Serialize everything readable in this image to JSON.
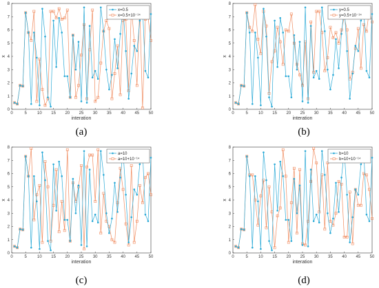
{
  "chart_data": [
    {
      "type": "line",
      "panel_label": "(a)",
      "xlabel": "interation",
      "ylabel": "x",
      "xlim": [
        0,
        50
      ],
      "ylim": [
        0,
        8
      ],
      "xticks": [
        0,
        5,
        10,
        15,
        20,
        25,
        30,
        35,
        40,
        45,
        50
      ],
      "yticks": [
        0,
        1,
        2,
        3,
        4,
        5,
        6,
        7,
        8
      ],
      "grid": false,
      "legend_position": "top-right",
      "x": [
        1,
        2,
        3,
        4,
        5,
        6,
        7,
        8,
        9,
        10,
        11,
        12,
        13,
        14,
        15,
        16,
        17,
        18,
        19,
        20,
        21,
        22,
        23,
        24,
        25,
        26,
        27,
        28,
        29,
        30,
        31,
        32,
        33,
        34,
        35,
        36,
        37,
        38,
        39,
        40,
        41,
        42,
        43,
        44,
        45,
        46,
        47,
        48,
        49,
        50
      ],
      "series": [
        {
          "name": "x=0.5",
          "color": "#29a9d6",
          "marker": "dot",
          "values": [
            0.5,
            0.4,
            1.8,
            1.75,
            7.3,
            5.8,
            0.4,
            5.8,
            3.9,
            0.3,
            7.6,
            5.5,
            0.9,
            0.2,
            6.7,
            3.2,
            6.9,
            5.8,
            2.5,
            2.5,
            0.9,
            5.6,
            3.0,
            5.1,
            0.6,
            7.7,
            0.5,
            6.3,
            2.4,
            2.9,
            2.3,
            7.7,
            5.9,
            3.0,
            1.5,
            2.6,
            5.3,
            3.1,
            5.7,
            7.7,
            4.4,
            0.8,
            2.7,
            4.8,
            4.4,
            6.7,
            7.7,
            2.9,
            2.4,
            7.2
          ]
        },
        {
          "name": "x=0.5+10⁻¹⁴",
          "color": "#f08a5d",
          "marker": "square",
          "values": [
            0.5,
            0.4,
            1.8,
            1.75,
            7.3,
            5.8,
            5.2,
            7.4,
            0.6,
            3.8,
            1.5,
            0.3,
            0.8,
            7.4,
            7.4,
            6.9,
            7.6,
            6.8,
            6.9,
            7.5,
            0.9,
            5.6,
            0.9,
            1.8,
            4.1,
            6.4,
            0.8,
            4.5,
            7.5,
            0.6,
            0.9,
            3.5,
            5.9,
            6.7,
            6.1,
            0.8,
            2.7,
            4.8,
            1.1,
            6.7,
            6.8,
            1.4,
            7.7,
            5.2,
            1.8,
            7.7,
            0.1,
            6.8,
            6.9,
            5.2
          ]
        }
      ]
    },
    {
      "type": "line",
      "panel_label": "(b)",
      "xlabel": "interation",
      "ylabel": "x",
      "xlim": [
        0,
        50
      ],
      "ylim": [
        0,
        8
      ],
      "xticks": [
        0,
        5,
        10,
        15,
        20,
        25,
        30,
        35,
        40,
        45,
        50
      ],
      "yticks": [
        0,
        1,
        2,
        3,
        4,
        5,
        6,
        7,
        8
      ],
      "grid": false,
      "legend_position": "top-right",
      "x": [
        1,
        2,
        3,
        4,
        5,
        6,
        7,
        8,
        9,
        10,
        11,
        12,
        13,
        14,
        15,
        16,
        17,
        18,
        19,
        20,
        21,
        22,
        23,
        24,
        25,
        26,
        27,
        28,
        29,
        30,
        31,
        32,
        33,
        34,
        35,
        36,
        37,
        38,
        39,
        40,
        41,
        42,
        43,
        44,
        45,
        46,
        47,
        48,
        49,
        50
      ],
      "series": [
        {
          "name": "y=0.5",
          "color": "#29a9d6",
          "marker": "dot",
          "values": [
            0.5,
            0.4,
            1.8,
            1.75,
            7.3,
            5.8,
            0.4,
            5.8,
            3.9,
            0.3,
            7.6,
            5.5,
            0.9,
            0.2,
            6.7,
            3.2,
            6.9,
            5.8,
            2.5,
            2.5,
            0.9,
            5.6,
            3.0,
            5.1,
            0.6,
            7.7,
            0.5,
            6.3,
            2.4,
            2.9,
            2.3,
            7.7,
            5.9,
            3.0,
            1.5,
            2.6,
            5.3,
            3.1,
            5.7,
            7.7,
            4.4,
            0.8,
            2.7,
            4.8,
            4.4,
            6.7,
            7.7,
            2.9,
            2.4,
            7.2
          ]
        },
        {
          "name": "y=0.5+10⁻¹⁴",
          "color": "#f08a5d",
          "marker": "square",
          "values": [
            0.5,
            0.4,
            1.8,
            1.75,
            7.3,
            6.2,
            5.9,
            7.9,
            5.3,
            4.2,
            7.4,
            6.3,
            1.2,
            3.6,
            4.4,
            6.2,
            5.1,
            3.4,
            6.0,
            5.9,
            7.2,
            5.0,
            3.4,
            2.6,
            1.8,
            5.1,
            0.8,
            6.6,
            2.8,
            7.4,
            7.4,
            5.8,
            2.9,
            3.9,
            6.2,
            5.4,
            5.8,
            5.0,
            6.0,
            7.0,
            6.0,
            2.3,
            2.8,
            4.6,
            6.1,
            3.1,
            6.4,
            5.9,
            7.5,
            6.6
          ]
        }
      ]
    },
    {
      "type": "line",
      "panel_label": "(c)",
      "xlabel": "interation",
      "ylabel": "x",
      "xlim": [
        0,
        50
      ],
      "ylim": [
        0,
        8
      ],
      "xticks": [
        0,
        5,
        10,
        15,
        20,
        25,
        30,
        35,
        40,
        45,
        50
      ],
      "yticks": [
        0,
        1,
        2,
        3,
        4,
        5,
        6,
        7,
        8
      ],
      "grid": false,
      "legend_position": "top-right",
      "x": [
        1,
        2,
        3,
        4,
        5,
        6,
        7,
        8,
        9,
        10,
        11,
        12,
        13,
        14,
        15,
        16,
        17,
        18,
        19,
        20,
        21,
        22,
        23,
        24,
        25,
        26,
        27,
        28,
        29,
        30,
        31,
        32,
        33,
        34,
        35,
        36,
        37,
        38,
        39,
        40,
        41,
        42,
        43,
        44,
        45,
        46,
        47,
        48,
        49,
        50
      ],
      "series": [
        {
          "name": "a=10",
          "color": "#29a9d6",
          "marker": "dot",
          "values": [
            0.5,
            0.4,
            1.8,
            1.75,
            7.3,
            5.8,
            0.4,
            5.8,
            3.9,
            0.3,
            7.6,
            5.5,
            0.9,
            0.2,
            6.7,
            3.2,
            6.9,
            5.8,
            2.5,
            2.5,
            0.9,
            5.6,
            3.0,
            5.1,
            0.6,
            7.7,
            0.5,
            6.3,
            2.4,
            2.9,
            2.3,
            7.7,
            5.9,
            3.0,
            1.5,
            2.6,
            5.3,
            3.1,
            5.7,
            7.7,
            4.4,
            0.8,
            2.7,
            4.8,
            4.4,
            6.7,
            7.7,
            2.9,
            2.4,
            7.2
          ]
        },
        {
          "name": "a=10+10⁻¹⁴",
          "color": "#f08a5d",
          "marker": "square",
          "values": [
            0.5,
            0.4,
            1.8,
            1.75,
            7.3,
            5.8,
            7.9,
            2.5,
            4.4,
            5.1,
            0.8,
            6.9,
            5.0,
            0.9,
            3.6,
            6.3,
            1.6,
            3.9,
            1.7,
            7.8,
            0.9,
            5.3,
            3.9,
            5.0,
            6.6,
            0.3,
            6.5,
            7.4,
            7.4,
            3.9,
            7.8,
            1.5,
            4.5,
            2.4,
            2.0,
            1.0,
            0.8,
            3.8,
            6.4,
            4.8,
            2.2,
            0.6,
            6.6,
            0.8,
            2.4,
            5.1,
            3.8,
            5.7,
            6.0,
            4.4
          ]
        }
      ]
    },
    {
      "type": "line",
      "panel_label": "(d)",
      "xlabel": "interation",
      "ylabel": "x",
      "xlim": [
        0,
        50
      ],
      "ylim": [
        0,
        8
      ],
      "xticks": [
        0,
        5,
        10,
        15,
        20,
        25,
        30,
        35,
        40,
        45,
        50
      ],
      "yticks": [
        0,
        1,
        2,
        3,
        4,
        5,
        6,
        7,
        8
      ],
      "grid": false,
      "legend_position": "top-right",
      "x": [
        1,
        2,
        3,
        4,
        5,
        6,
        7,
        8,
        9,
        10,
        11,
        12,
        13,
        14,
        15,
        16,
        17,
        18,
        19,
        20,
        21,
        22,
        23,
        24,
        25,
        26,
        27,
        28,
        29,
        30,
        31,
        32,
        33,
        34,
        35,
        36,
        37,
        38,
        39,
        40,
        41,
        42,
        43,
        44,
        45,
        46,
        47,
        48,
        49,
        50
      ],
      "series": [
        {
          "name": "b=10",
          "color": "#29a9d6",
          "marker": "dot",
          "values": [
            0.5,
            0.4,
            1.8,
            1.75,
            7.3,
            5.8,
            0.4,
            5.8,
            3.9,
            0.3,
            7.6,
            5.5,
            0.9,
            0.2,
            6.7,
            3.2,
            6.9,
            5.8,
            2.5,
            2.5,
            0.9,
            5.6,
            3.0,
            5.1,
            0.6,
            7.7,
            0.5,
            6.3,
            2.4,
            2.9,
            2.3,
            7.7,
            5.9,
            3.0,
            1.5,
            2.6,
            5.3,
            3.1,
            5.7,
            7.7,
            4.4,
            0.8,
            2.7,
            4.8,
            4.4,
            6.7,
            7.7,
            2.9,
            2.4,
            7.2
          ]
        },
        {
          "name": "b=10+10⁻¹⁴",
          "color": "#f08a5d",
          "marker": "square",
          "values": [
            0.5,
            0.4,
            1.8,
            1.75,
            7.3,
            5.9,
            5.9,
            4.0,
            2.1,
            4.3,
            5.5,
            1.9,
            5.0,
            3.1,
            0.4,
            2.8,
            3.4,
            7.8,
            5.8,
            0.8,
            3.8,
            6.4,
            1.5,
            6.3,
            0.7,
            0.6,
            2.4,
            5.4,
            7.9,
            6.8,
            3.1,
            5.9,
            1.8,
            6.8,
            2.4,
            2.1,
            3.0,
            5.4,
            5.2,
            1.2,
            1.2,
            4.6,
            0.7,
            4.8,
            3.6,
            3.6,
            6.0,
            5.9,
            4.8,
            2.6
          ]
        }
      ]
    }
  ]
}
